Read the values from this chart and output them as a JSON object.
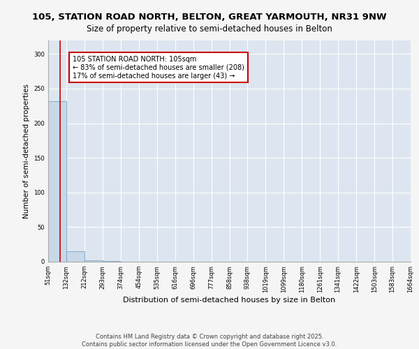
{
  "title1": "105, STATION ROAD NORTH, BELTON, GREAT YARMOUTH, NR31 9NW",
  "title2": "Size of property relative to semi-detached houses in Belton",
  "xlabel": "Distribution of semi-detached houses by size in Belton",
  "ylabel": "Number of semi-detached properties",
  "footer": "Contains HM Land Registry data © Crown copyright and database right 2025.\nContains public sector information licensed under the Open Government Licence v3.0.",
  "bin_edges": [
    51,
    132,
    212,
    293,
    374,
    454,
    535,
    616,
    696,
    777,
    858,
    938,
    1019,
    1099,
    1180,
    1261,
    1341,
    1422,
    1503,
    1583,
    1664
  ],
  "bin_labels": [
    "51sqm",
    "132sqm",
    "212sqm",
    "293sqm",
    "374sqm",
    "454sqm",
    "535sqm",
    "616sqm",
    "696sqm",
    "777sqm",
    "858sqm",
    "938sqm",
    "1019sqm",
    "1099sqm",
    "1180sqm",
    "1261sqm",
    "1341sqm",
    "1422sqm",
    "1503sqm",
    "1583sqm",
    "1664sqm"
  ],
  "counts": [
    232,
    15,
    2,
    1,
    0,
    0,
    0,
    0,
    0,
    0,
    0,
    0,
    0,
    0,
    0,
    0,
    0,
    0,
    0,
    0
  ],
  "bar_color": "#c8d8e8",
  "bar_edge_color": "#6699bb",
  "property_line_x": 105,
  "property_line_color": "#cc0000",
  "annotation_text": "105 STATION ROAD NORTH: 105sqm\n← 83% of semi-detached houses are smaller (208)\n17% of semi-detached houses are larger (43) →",
  "annotation_box_color": "#ffffff",
  "annotation_box_edge_color": "#cc0000",
  "ylim": [
    0,
    320
  ],
  "background_color": "#dde6f0",
  "grid_color": "#ffffff",
  "title1_fontsize": 9.5,
  "title2_fontsize": 8.5,
  "ylabel_fontsize": 7.5,
  "xlabel_fontsize": 8,
  "annotation_fontsize": 7,
  "tick_fontsize": 6,
  "footer_fontsize": 6
}
